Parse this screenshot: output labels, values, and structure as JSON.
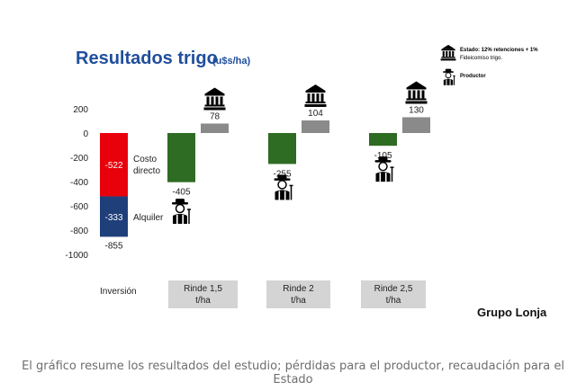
{
  "chart_data": {
    "type": "bar",
    "title": "Resultados trigo",
    "unit": "(u$s/ha)",
    "yticks": [
      200,
      0,
      -200,
      -400,
      -600,
      -800,
      -1000
    ],
    "ylim": [
      -1000,
      200
    ],
    "grid": false,
    "inversion": {
      "label": "Inversión",
      "total": -855,
      "segments": [
        {
          "name": "Costo directo",
          "value": -522,
          "color": "#e8000b"
        },
        {
          "name": "Alquiler",
          "value": -333,
          "color": "#1f3f7a"
        }
      ]
    },
    "groups": [
      {
        "label_line1": "Rinde 1,5",
        "label_line2": "t/ha",
        "productor": -405,
        "estado": 78
      },
      {
        "label_line1": "Rinde 2",
        "label_line2": "t/ha",
        "productor": -255,
        "estado": 104
      },
      {
        "label_line1": "Rinde 2,5",
        "label_line2": "t/ha",
        "productor": -105,
        "estado": 130
      }
    ],
    "colors": {
      "productor": "#2e6b23",
      "estado": "#8a8a8a",
      "title": "#1f4e9c",
      "category_box": "#d4d4d4"
    },
    "legend": {
      "estado_line1": "Estado: 12% retenciones + 1%",
      "estado_line2": "Fideicomiso trigo.",
      "productor": "Productor",
      "estado_icon": "government-building-icon",
      "productor_icon": "farmer-icon"
    }
  },
  "brand": "Grupo Lonja",
  "caption": "El gráfico resume los resultados del estudio; pérdidas para el productor, recaudación para el Estado"
}
